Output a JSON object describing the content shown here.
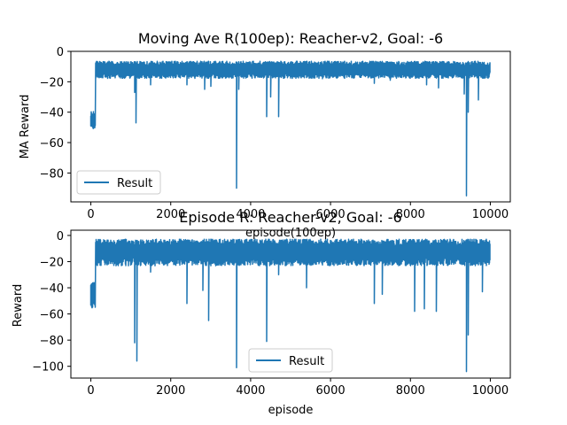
{
  "chart_data": [
    {
      "type": "line",
      "title": "Moving Ave R(100ep): Reacher-v2, Goal: -6",
      "xlabel": "episode(100ep)",
      "ylabel": "MA Reward",
      "xlim": [
        -500,
        10500
      ],
      "ylim": [
        -99,
        0
      ],
      "xticks": [
        0,
        2000,
        4000,
        6000,
        8000,
        10000
      ],
      "yticks": [
        0,
        -20,
        -40,
        -60,
        -80
      ],
      "grid": false,
      "legend_position": "lower-left",
      "color": "#1f77b4",
      "series": [
        {
          "name": "Result",
          "base": {
            "early_level": -44,
            "early_end": 120,
            "level": -11,
            "end": 10000,
            "noise": 2.5
          },
          "spikes": [
            {
              "x": 30,
              "y": -47
            },
            {
              "x": 1100,
              "y": -27
            },
            {
              "x": 1130,
              "y": -47
            },
            {
              "x": 1500,
              "y": -22
            },
            {
              "x": 2400,
              "y": -22
            },
            {
              "x": 2850,
              "y": -25
            },
            {
              "x": 3000,
              "y": -23
            },
            {
              "x": 3650,
              "y": -90
            },
            {
              "x": 3700,
              "y": -25
            },
            {
              "x": 4400,
              "y": -43
            },
            {
              "x": 4500,
              "y": -30
            },
            {
              "x": 4700,
              "y": -43
            },
            {
              "x": 5800,
              "y": -18
            },
            {
              "x": 7100,
              "y": -21
            },
            {
              "x": 7500,
              "y": -19
            },
            {
              "x": 8400,
              "y": -22
            },
            {
              "x": 8700,
              "y": -24
            },
            {
              "x": 9350,
              "y": -28
            },
            {
              "x": 9400,
              "y": -95
            },
            {
              "x": 9450,
              "y": -40
            },
            {
              "x": 9700,
              "y": -32
            }
          ]
        }
      ]
    },
    {
      "type": "line",
      "title": "Episode R: Reacher-v2, Goal: -6",
      "xlabel": "episode",
      "ylabel": "Reward",
      "xlim": [
        -500,
        10500
      ],
      "ylim": [
        -109,
        4
      ],
      "xticks": [
        0,
        2000,
        4000,
        6000,
        8000,
        10000
      ],
      "yticks": [
        0,
        -20,
        -40,
        -60,
        -80,
        -100
      ],
      "grid": false,
      "legend_position": "lower-center",
      "color": "#1f77b4",
      "series": [
        {
          "name": "Result",
          "base": {
            "early_level": -44,
            "early_end": 120,
            "level": -11,
            "end": 10000,
            "noise": 4.5
          },
          "spikes": [
            {
              "x": 10,
              "y": -51
            },
            {
              "x": 1100,
              "y": -82
            },
            {
              "x": 1150,
              "y": -96
            },
            {
              "x": 1500,
              "y": -28
            },
            {
              "x": 2400,
              "y": -52
            },
            {
              "x": 2800,
              "y": -42
            },
            {
              "x": 2950,
              "y": -65
            },
            {
              "x": 3650,
              "y": -101
            },
            {
              "x": 4400,
              "y": -81
            },
            {
              "x": 4700,
              "y": -30
            },
            {
              "x": 5400,
              "y": -40
            },
            {
              "x": 7100,
              "y": -52
            },
            {
              "x": 7300,
              "y": -45
            },
            {
              "x": 8100,
              "y": -58
            },
            {
              "x": 8350,
              "y": -56
            },
            {
              "x": 8650,
              "y": -58
            },
            {
              "x": 9400,
              "y": -104
            },
            {
              "x": 9450,
              "y": -76
            },
            {
              "x": 9800,
              "y": -43
            }
          ]
        }
      ]
    }
  ]
}
